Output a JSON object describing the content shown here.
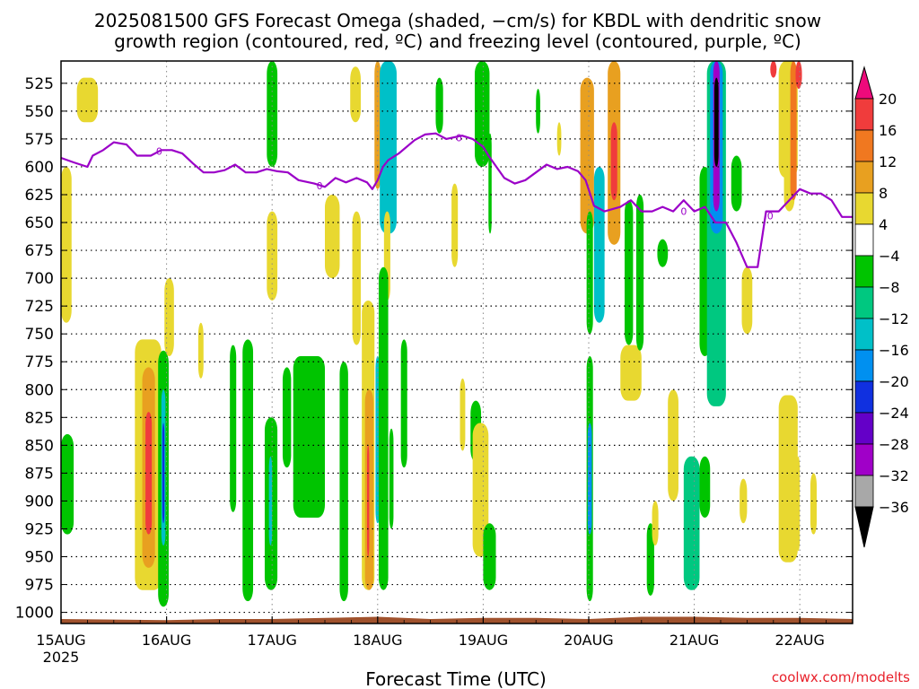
{
  "chart_data": {
    "type": "heatmap",
    "title_line1": "2025081500 GFS Forecast Omega (shaded, −cm/s) for KBDL with dendritic snow",
    "title_line2": "growth region (contoured, red, ºC) and freezing level (contoured, purple, ºC)",
    "xlabel": "Forecast Time (UTC)",
    "x_ticks": [
      "15AUG",
      "16AUG",
      "17AUG",
      "18AUG",
      "19AUG",
      "20AUG",
      "21AUG",
      "22AUG"
    ],
    "x_start_year": "2025",
    "y_ticks": [
      525,
      550,
      575,
      600,
      625,
      650,
      675,
      700,
      725,
      750,
      775,
      800,
      825,
      850,
      875,
      900,
      925,
      950,
      975,
      1000
    ],
    "ylim": [
      1010,
      505
    ],
    "xlim_days": [
      0,
      7.5
    ],
    "grid": "dotted",
    "colorbar": {
      "labels": [
        "20",
        "16",
        "12",
        "8",
        "4",
        "−4",
        "−8",
        "−12",
        "−16",
        "−20",
        "−24",
        "−28",
        "−32",
        "−36"
      ],
      "colors": [
        "#ee0a7b",
        "#f03c3c",
        "#f07820",
        "#e8a020",
        "#e8d830",
        "#ffffff",
        "#00c400",
        "#00c880",
        "#00c0c8",
        "#0090f0",
        "#1030e0",
        "#6400c8",
        "#a000c8",
        "#a8a8a8",
        "#000000"
      ]
    },
    "freezing_level_label": "0",
    "freezing_level": [
      [
        0.0,
        592
      ],
      [
        0.12,
        596
      ],
      [
        0.25,
        600
      ],
      [
        0.3,
        590
      ],
      [
        0.4,
        585
      ],
      [
        0.5,
        578
      ],
      [
        0.62,
        580
      ],
      [
        0.72,
        590
      ],
      [
        0.85,
        590
      ],
      [
        0.95,
        585
      ],
      [
        1.05,
        585
      ],
      [
        1.15,
        588
      ],
      [
        1.25,
        597
      ],
      [
        1.35,
        605
      ],
      [
        1.45,
        605
      ],
      [
        1.55,
        603
      ],
      [
        1.65,
        598
      ],
      [
        1.75,
        605
      ],
      [
        1.85,
        605
      ],
      [
        1.95,
        602
      ],
      [
        2.05,
        604
      ],
      [
        2.15,
        605
      ],
      [
        2.25,
        612
      ],
      [
        2.4,
        615
      ],
      [
        2.5,
        618
      ],
      [
        2.6,
        610
      ],
      [
        2.7,
        614
      ],
      [
        2.8,
        610
      ],
      [
        2.9,
        614
      ],
      [
        2.95,
        620
      ],
      [
        3.0,
        612
      ],
      [
        3.05,
        600
      ],
      [
        3.1,
        594
      ],
      [
        3.2,
        588
      ],
      [
        3.35,
        576
      ],
      [
        3.45,
        571
      ],
      [
        3.55,
        570
      ],
      [
        3.65,
        575
      ],
      [
        3.8,
        572
      ],
      [
        3.9,
        575
      ],
      [
        4.0,
        582
      ],
      [
        4.05,
        590
      ],
      [
        4.2,
        610
      ],
      [
        4.3,
        615
      ],
      [
        4.4,
        612
      ],
      [
        4.5,
        605
      ],
      [
        4.6,
        598
      ],
      [
        4.7,
        602
      ],
      [
        4.8,
        600
      ],
      [
        4.9,
        604
      ],
      [
        4.97,
        612
      ],
      [
        5.05,
        635
      ],
      [
        5.15,
        640
      ],
      [
        5.3,
        636
      ],
      [
        5.4,
        630
      ],
      [
        5.5,
        640
      ],
      [
        5.6,
        640
      ],
      [
        5.7,
        636
      ],
      [
        5.8,
        640
      ],
      [
        5.9,
        630
      ],
      [
        6.0,
        640
      ],
      [
        6.1,
        636
      ],
      [
        6.2,
        650
      ],
      [
        6.3,
        650
      ],
      [
        6.4,
        668
      ],
      [
        6.5,
        690
      ],
      [
        6.6,
        690
      ],
      [
        6.68,
        640
      ],
      [
        6.8,
        640
      ],
      [
        6.9,
        630
      ],
      [
        7.0,
        620
      ],
      [
        7.1,
        624
      ],
      [
        7.2,
        624
      ],
      [
        7.3,
        630
      ],
      [
        7.4,
        645
      ],
      [
        7.5,
        645
      ]
    ],
    "omega_regions": [
      {
        "x": [
          0.15,
          0.35
        ],
        "p": [
          520,
          560
        ],
        "value": 6
      },
      {
        "x": [
          0.0,
          0.1
        ],
        "p": [
          600,
          740
        ],
        "value": 6
      },
      {
        "x": [
          0.0,
          0.12
        ],
        "p": [
          840,
          930
        ],
        "value": -6
      },
      {
        "x": [
          0.7,
          0.95
        ],
        "p": [
          755,
          980
        ],
        "value": 6
      },
      {
        "x": [
          0.77,
          0.89
        ],
        "p": [
          780,
          960
        ],
        "value": 10
      },
      {
        "x": [
          0.8,
          0.86
        ],
        "p": [
          820,
          930
        ],
        "value": 18
      },
      {
        "x": [
          0.92,
          1.02
        ],
        "p": [
          765,
          995
        ],
        "value": -6
      },
      {
        "x": [
          0.95,
          0.99
        ],
        "p": [
          800,
          940
        ],
        "value": -14
      },
      {
        "x": [
          0.96,
          0.98
        ],
        "p": [
          830,
          920
        ],
        "value": -22
      },
      {
        "x": [
          0.98,
          1.07
        ],
        "p": [
          700,
          770
        ],
        "value": 6
      },
      {
        "x": [
          1.3,
          1.35
        ],
        "p": [
          740,
          790
        ],
        "value": 6
      },
      {
        "x": [
          1.6,
          1.66
        ],
        "p": [
          760,
          910
        ],
        "value": -6
      },
      {
        "x": [
          1.72,
          1.82
        ],
        "p": [
          755,
          990
        ],
        "value": -6
      },
      {
        "x": [
          1.95,
          2.05
        ],
        "p": [
          505,
          600
        ],
        "value": -6
      },
      {
        "x": [
          1.95,
          2.05
        ],
        "p": [
          640,
          720
        ],
        "value": 6
      },
      {
        "x": [
          1.93,
          2.05
        ],
        "p": [
          825,
          980
        ],
        "value": -6
      },
      {
        "x": [
          1.97,
          2.0
        ],
        "p": [
          860,
          940
        ],
        "value": -14
      },
      {
        "x": [
          2.1,
          2.18
        ],
        "p": [
          780,
          870
        ],
        "value": -6
      },
      {
        "x": [
          2.2,
          2.5
        ],
        "p": [
          770,
          915
        ],
        "value": -6
      },
      {
        "x": [
          2.5,
          2.64
        ],
        "p": [
          625,
          700
        ],
        "value": 6
      },
      {
        "x": [
          2.64,
          2.72
        ],
        "p": [
          775,
          990
        ],
        "value": -6
      },
      {
        "x": [
          2.74,
          2.84
        ],
        "p": [
          510,
          560
        ],
        "value": 6
      },
      {
        "x": [
          2.76,
          2.84
        ],
        "p": [
          640,
          760
        ],
        "value": 6
      },
      {
        "x": [
          2.85,
          2.97
        ],
        "p": [
          720,
          980
        ],
        "value": 6
      },
      {
        "x": [
          2.88,
          2.96
        ],
        "p": [
          800,
          980
        ],
        "value": 10
      },
      {
        "x": [
          2.9,
          2.92
        ],
        "p": [
          850,
          950
        ],
        "value": 18
      },
      {
        "x": [
          2.98,
          3.02
        ],
        "p": [
          770,
          920
        ],
        "value": -14
      },
      {
        "x": [
          2.97,
          3.03
        ],
        "p": [
          505,
          620
        ],
        "value": 10
      },
      {
        "x": [
          3.02,
          3.18
        ],
        "p": [
          505,
          660
        ],
        "value": -12
      },
      {
        "x": [
          3.06,
          3.12
        ],
        "p": [
          640,
          720
        ],
        "value": 6
      },
      {
        "x": [
          3.01,
          3.1
        ],
        "p": [
          690,
          980
        ],
        "value": -6
      },
      {
        "x": [
          3.11,
          3.15
        ],
        "p": [
          835,
          925
        ],
        "value": -6
      },
      {
        "x": [
          3.22,
          3.28
        ],
        "p": [
          755,
          870
        ],
        "value": -6
      },
      {
        "x": [
          3.55,
          3.62
        ],
        "p": [
          520,
          570
        ],
        "value": -6
      },
      {
        "x": [
          3.7,
          3.76
        ],
        "p": [
          615,
          690
        ],
        "value": 6
      },
      {
        "x": [
          3.92,
          4.06
        ],
        "p": [
          505,
          600
        ],
        "value": -6
      },
      {
        "x": [
          4.05,
          4.08
        ],
        "p": [
          570,
          660
        ],
        "value": -6
      },
      {
        "x": [
          3.78,
          3.83
        ],
        "p": [
          790,
          855
        ],
        "value": 6
      },
      {
        "x": [
          3.88,
          3.98
        ],
        "p": [
          810,
          865
        ],
        "value": -6
      },
      {
        "x": [
          3.9,
          4.05
        ],
        "p": [
          830,
          950
        ],
        "value": 6
      },
      {
        "x": [
          4.0,
          4.12
        ],
        "p": [
          920,
          980
        ],
        "value": -6
      },
      {
        "x": [
          4.5,
          4.54
        ],
        "p": [
          530,
          570
        ],
        "value": -6
      },
      {
        "x": [
          4.7,
          4.74
        ],
        "p": [
          560,
          590
        ],
        "value": 6
      },
      {
        "x": [
          4.92,
          5.05
        ],
        "p": [
          520,
          660
        ],
        "value": 8
      },
      {
        "x": [
          4.98,
          5.04
        ],
        "p": [
          640,
          750
        ],
        "value": -6
      },
      {
        "x": [
          4.98,
          5.04
        ],
        "p": [
          770,
          990
        ],
        "value": -6
      },
      {
        "x": [
          4.99,
          5.03
        ],
        "p": [
          830,
          930
        ],
        "value": -18
      },
      {
        "x": [
          5.05,
          5.15
        ],
        "p": [
          600,
          740
        ],
        "value": -14
      },
      {
        "x": [
          5.18,
          5.3
        ],
        "p": [
          505,
          670
        ],
        "value": 9
      },
      {
        "x": [
          5.21,
          5.27
        ],
        "p": [
          560,
          630
        ],
        "value": 16
      },
      {
        "x": [
          5.3,
          5.5
        ],
        "p": [
          760,
          810
        ],
        "value": 6
      },
      {
        "x": [
          5.34,
          5.42
        ],
        "p": [
          630,
          760
        ],
        "value": -6
      },
      {
        "x": [
          5.45,
          5.52
        ],
        "p": [
          625,
          765
        ],
        "value": -6
      },
      {
        "x": [
          5.55,
          5.62
        ],
        "p": [
          920,
          985
        ],
        "value": -6
      },
      {
        "x": [
          5.6,
          5.66
        ],
        "p": [
          900,
          940
        ],
        "value": 6
      },
      {
        "x": [
          5.65,
          5.75
        ],
        "p": [
          665,
          690
        ],
        "value": -6
      },
      {
        "x": [
          5.75,
          5.85
        ],
        "p": [
          800,
          900
        ],
        "value": 6
      },
      {
        "x": [
          5.9,
          6.05
        ],
        "p": [
          860,
          980
        ],
        "value": -10
      },
      {
        "x": [
          6.05,
          6.15
        ],
        "p": [
          860,
          915
        ],
        "value": -6
      },
      {
        "x": [
          6.05,
          6.15
        ],
        "p": [
          600,
          770
        ],
        "value": -6
      },
      {
        "x": [
          6.12,
          6.3
        ],
        "p": [
          505,
          815
        ],
        "value": -8
      },
      {
        "x": [
          6.15,
          6.27
        ],
        "p": [
          505,
          660
        ],
        "value": -16
      },
      {
        "x": [
          6.18,
          6.24
        ],
        "p": [
          505,
          640
        ],
        "value": -28
      },
      {
        "x": [
          6.19,
          6.23
        ],
        "p": [
          520,
          600
        ],
        "value": -40
      },
      {
        "x": [
          6.35,
          6.45
        ],
        "p": [
          590,
          640
        ],
        "value": -6
      },
      {
        "x": [
          6.45,
          6.55
        ],
        "p": [
          690,
          750
        ],
        "value": 6
      },
      {
        "x": [
          6.43,
          6.5
        ],
        "p": [
          880,
          920
        ],
        "value": 6
      },
      {
        "x": [
          6.8,
          6.98
        ],
        "p": [
          805,
          955
        ],
        "value": 6
      },
      {
        "x": [
          6.97,
          7.0
        ],
        "p": [
          860,
          945
        ],
        "value": 6
      },
      {
        "x": [
          7.1,
          7.16
        ],
        "p": [
          875,
          930
        ],
        "value": 6
      },
      {
        "x": [
          6.85,
          6.95
        ],
        "p": [
          590,
          640
        ],
        "value": 6
      },
      {
        "x": [
          6.72,
          6.78
        ],
        "p": [
          505,
          520
        ],
        "value": 18
      },
      {
        "x": [
          6.8,
          6.98
        ],
        "p": [
          505,
          610
        ],
        "value": 7
      },
      {
        "x": [
          6.91,
          6.97
        ],
        "p": [
          505,
          630
        ],
        "value": 12
      },
      {
        "x": [
          6.96,
          7.02
        ],
        "p": [
          505,
          530
        ],
        "value": 16
      }
    ],
    "ground_surface": [
      [
        0,
        1006
      ],
      [
        1.0,
        1007
      ],
      [
        1.5,
        1006
      ],
      [
        2.0,
        1006
      ],
      [
        2.5,
        1005
      ],
      [
        3.0,
        1004
      ],
      [
        3.5,
        1006
      ],
      [
        4.0,
        1005
      ],
      [
        4.5,
        1005
      ],
      [
        5.0,
        1006
      ],
      [
        5.5,
        1004
      ],
      [
        6.0,
        1004
      ],
      [
        6.5,
        1005
      ],
      [
        7.0,
        1005
      ],
      [
        7.5,
        1006
      ]
    ]
  },
  "watermark": "coolwx.com/modelts"
}
